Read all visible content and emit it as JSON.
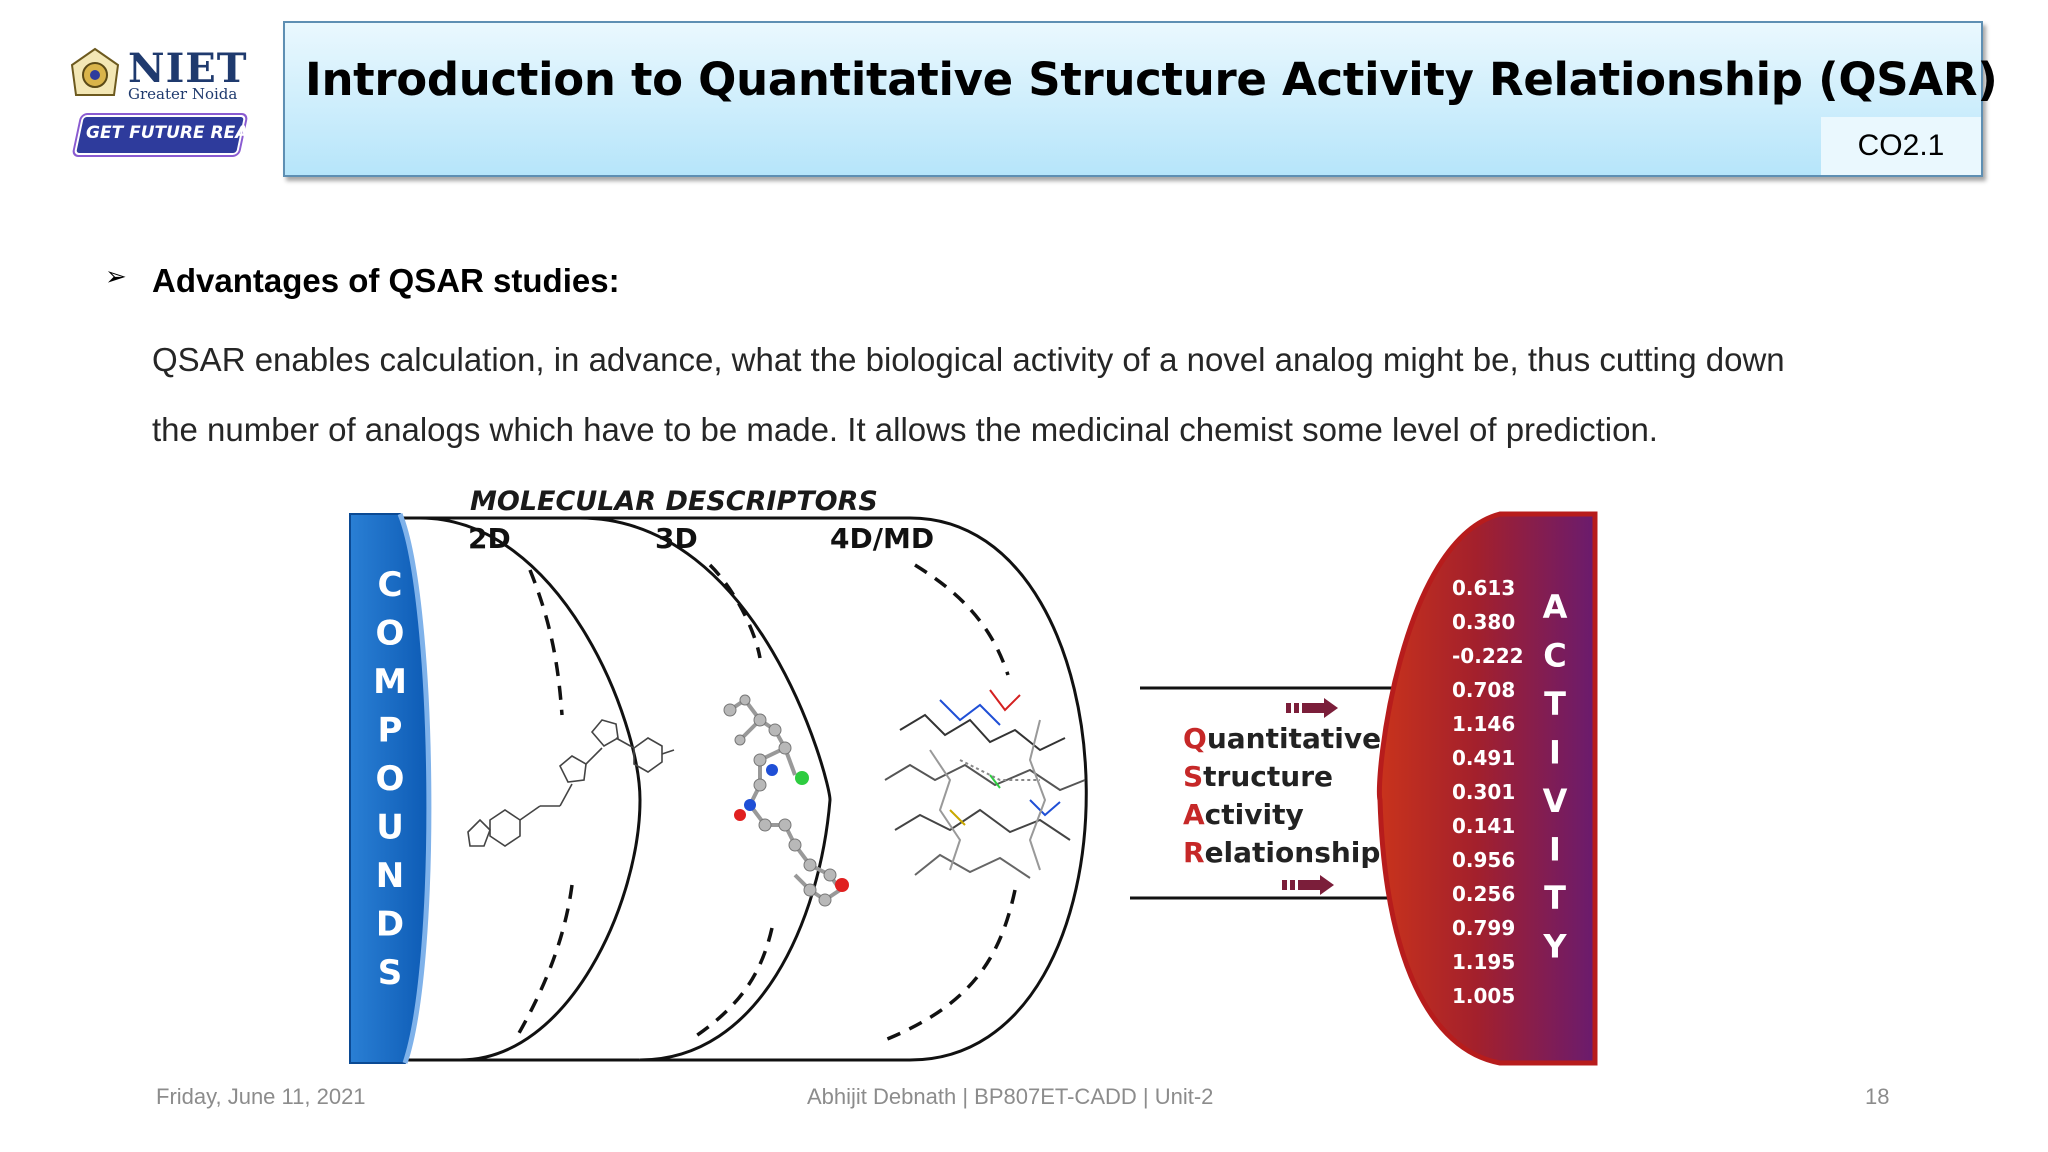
{
  "header": {
    "logo_name": "NIET",
    "logo_sub": "Greater Noida",
    "logo_tagline": "GET FUTURE READY",
    "title": "Introduction to Quantitative Structure Activity Relationship (QSAR)",
    "course_outcome": "CO2.1"
  },
  "content": {
    "bullet_symbol": "➢",
    "heading": "Advantages of QSAR studies:",
    "paragraph_line1": "QSAR enables calculation, in advance, what the biological activity of a novel analog might be, thus cutting down",
    "paragraph_line2": "the number of analogs which have to be made. It allows the medicinal chemist some level of prediction."
  },
  "figure": {
    "descriptors_title": "MOLECULAR DESCRIPTORS",
    "descriptor_labels": [
      "2D",
      "3D",
      "4D/MD"
    ],
    "compounds_letters": [
      "C",
      "O",
      "M",
      "P",
      "O",
      "U",
      "N",
      "D",
      "S"
    ],
    "activity_letters": [
      "A",
      "C",
      "T",
      "I",
      "V",
      "I",
      "T",
      "Y"
    ],
    "activity_values": [
      "0.613",
      "0.380",
      "-0.222",
      "0.708",
      "1.146",
      "0.491",
      "0.301",
      "0.141",
      "0.956",
      "0.256",
      "0.799",
      "1.195",
      "1.005"
    ],
    "qsar_words": [
      {
        "initial": "Q",
        "rest": "uantitative"
      },
      {
        "initial": "S",
        "rest": "tructure"
      },
      {
        "initial": "A",
        "rest": "ctivity"
      },
      {
        "initial": "R",
        "rest": "elationships"
      }
    ],
    "colors": {
      "compounds_blue": "#1565c0",
      "activity_red": "#c62828",
      "activity_purple": "#6a1b6e",
      "arrow": "#7b1e3a"
    }
  },
  "footer": {
    "date": "Friday, June 11, 2021",
    "center": "Abhijit Debnath | BP807ET-CADD | Unit-2",
    "page": "18"
  }
}
